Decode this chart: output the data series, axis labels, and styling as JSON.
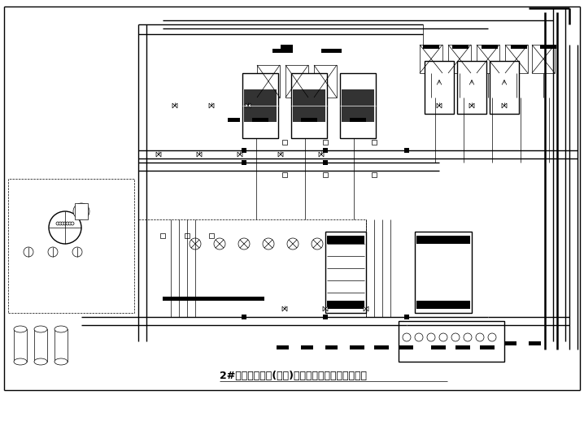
{
  "title": "2#制冷换热机房(公建)空调冷热水制备系统原理图",
  "bg_color": "#ffffff",
  "line_color": "#000000",
  "title_fontsize": 9,
  "fig_width": 7.18,
  "fig_height": 5.34,
  "dpi": 100
}
